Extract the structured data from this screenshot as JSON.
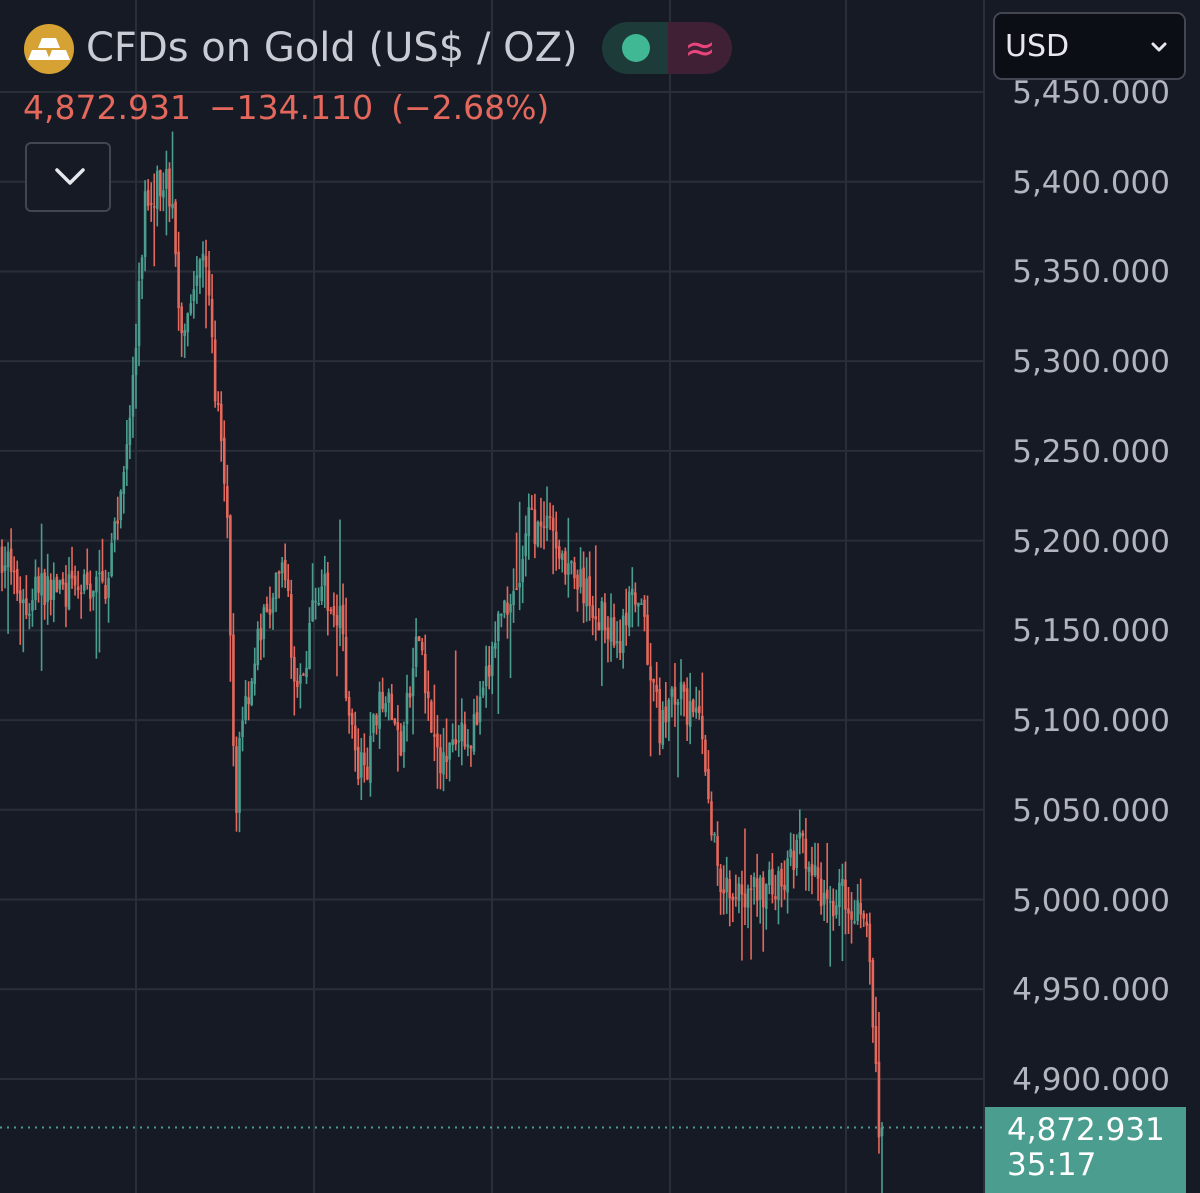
{
  "header": {
    "symbol_title": "CFDs on Gold (US$ / OZ)",
    "logo_icon": "gold-bars-icon",
    "market_status_icon": "market-open-dot-icon",
    "data_source_icon": "delayed-data-icon",
    "data_source_glyph": "≈",
    "last_price": "4,872.931",
    "change": "−134.110",
    "change_percent": "(−2.68%)",
    "collapse_icon": "chevron-down-icon"
  },
  "currency_select": {
    "value": "USD",
    "icon": "chevron-down-icon"
  },
  "last_price_tag": {
    "price": "4,872.931",
    "countdown": "35:17"
  },
  "colors": {
    "background": "#161a25",
    "grid": "#2a2e39",
    "up": "#4b9e8f",
    "down": "#e4685c",
    "accent_gold": "#d6a233"
  },
  "chart_data": {
    "type": "candlestick",
    "ylim": [
      4840,
      5452
    ],
    "y_ticks": [
      "5,450.000",
      "5,400.000",
      "5,350.000",
      "5,300.000",
      "5,250.000",
      "5,200.000",
      "5,150.000",
      "5,100.000",
      "5,050.000",
      "5,000.000",
      "4,950.000",
      "4,900.000"
    ],
    "y_tick_values": [
      5450,
      5400,
      5350,
      5300,
      5250,
      5200,
      5150,
      5100,
      5050,
      5000,
      4950,
      4900
    ],
    "last_price_value": 4872.931,
    "candle_count": 290,
    "price_path": [
      [
        0,
        5195
      ],
      [
        10,
        5185
      ],
      [
        20,
        5170
      ],
      [
        28,
        5160
      ],
      [
        35,
        5180
      ],
      [
        45,
        5170
      ],
      [
        60,
        5175
      ],
      [
        75,
        5170
      ],
      [
        90,
        5175
      ],
      [
        105,
        5175
      ],
      [
        115,
        5205
      ],
      [
        125,
        5245
      ],
      [
        135,
        5300
      ],
      [
        145,
        5390
      ],
      [
        155,
        5395
      ],
      [
        165,
        5405
      ],
      [
        172,
        5385
      ],
      [
        180,
        5320
      ],
      [
        190,
        5335
      ],
      [
        200,
        5350
      ],
      [
        205,
        5365
      ],
      [
        210,
        5320
      ],
      [
        218,
        5270
      ],
      [
        228,
        5200
      ],
      [
        232,
        5100
      ],
      [
        236,
        5040
      ],
      [
        240,
        5100
      ],
      [
        250,
        5120
      ],
      [
        260,
        5150
      ],
      [
        268,
        5160
      ],
      [
        278,
        5175
      ],
      [
        285,
        5190
      ],
      [
        292,
        5130
      ],
      [
        300,
        5115
      ],
      [
        310,
        5150
      ],
      [
        320,
        5180
      ],
      [
        330,
        5160
      ],
      [
        340,
        5165
      ],
      [
        348,
        5110
      ],
      [
        358,
        5070
      ],
      [
        370,
        5080
      ],
      [
        380,
        5120
      ],
      [
        390,
        5105
      ],
      [
        400,
        5085
      ],
      [
        410,
        5115
      ],
      [
        420,
        5150
      ],
      [
        430,
        5100
      ],
      [
        440,
        5070
      ],
      [
        450,
        5090
      ],
      [
        460,
        5100
      ],
      [
        470,
        5090
      ],
      [
        480,
        5105
      ],
      [
        490,
        5130
      ],
      [
        500,
        5160
      ],
      [
        510,
        5170
      ],
      [
        520,
        5180
      ],
      [
        530,
        5215
      ],
      [
        540,
        5200
      ],
      [
        550,
        5205
      ],
      [
        560,
        5195
      ],
      [
        570,
        5185
      ],
      [
        580,
        5175
      ],
      [
        590,
        5165
      ],
      [
        600,
        5160
      ],
      [
        610,
        5150
      ],
      [
        620,
        5145
      ],
      [
        630,
        5165
      ],
      [
        640,
        5160
      ],
      [
        650,
        5130
      ],
      [
        660,
        5095
      ],
      [
        670,
        5110
      ],
      [
        680,
        5115
      ],
      [
        690,
        5100
      ],
      [
        700,
        5100
      ],
      [
        705,
        5070
      ],
      [
        712,
        5040
      ],
      [
        720,
        5015
      ],
      [
        730,
        5005
      ],
      [
        740,
        5010
      ],
      [
        750,
        5000
      ],
      [
        760,
        5005
      ],
      [
        770,
        5010
      ],
      [
        780,
        5005
      ],
      [
        790,
        5020
      ],
      [
        800,
        5030
      ],
      [
        810,
        5015
      ],
      [
        820,
        5005
      ],
      [
        830,
        5000
      ],
      [
        840,
        5005
      ],
      [
        850,
        5000
      ],
      [
        860,
        4995
      ],
      [
        866,
        4985
      ],
      [
        870,
        4960
      ],
      [
        874,
        4920
      ],
      [
        878,
        4880
      ],
      [
        882,
        4872.931
      ]
    ]
  }
}
